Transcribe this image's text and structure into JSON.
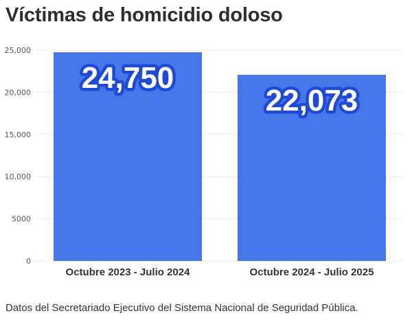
{
  "title": "Víctimas de homicidio doloso",
  "footer": "Datos del Secretariado Ejecutivo del Sistema Nacional de Seguridad Pública.",
  "colors": {
    "bar": "#4677e8",
    "label_outline": "#1f49d8",
    "grid": "#ebebeb"
  },
  "chart_data": {
    "type": "bar",
    "title": "Víctimas de homicidio doloso",
    "categories": [
      "Octubre 2023 - Julio 2024",
      "Octubre 2024 - Julio 2025"
    ],
    "values": [
      24750,
      22073
    ],
    "data_labels": [
      "24,750",
      "22,073"
    ],
    "ylim": [
      0,
      25000
    ],
    "yticks": [
      0,
      5000,
      10000,
      15000,
      20000,
      25000
    ],
    "ytick_labels": [
      "0",
      "5000",
      "10,000",
      "15,000",
      "20,000",
      "25,000"
    ],
    "xlabel": "",
    "ylabel": "",
    "grid": true,
    "legend": false
  }
}
